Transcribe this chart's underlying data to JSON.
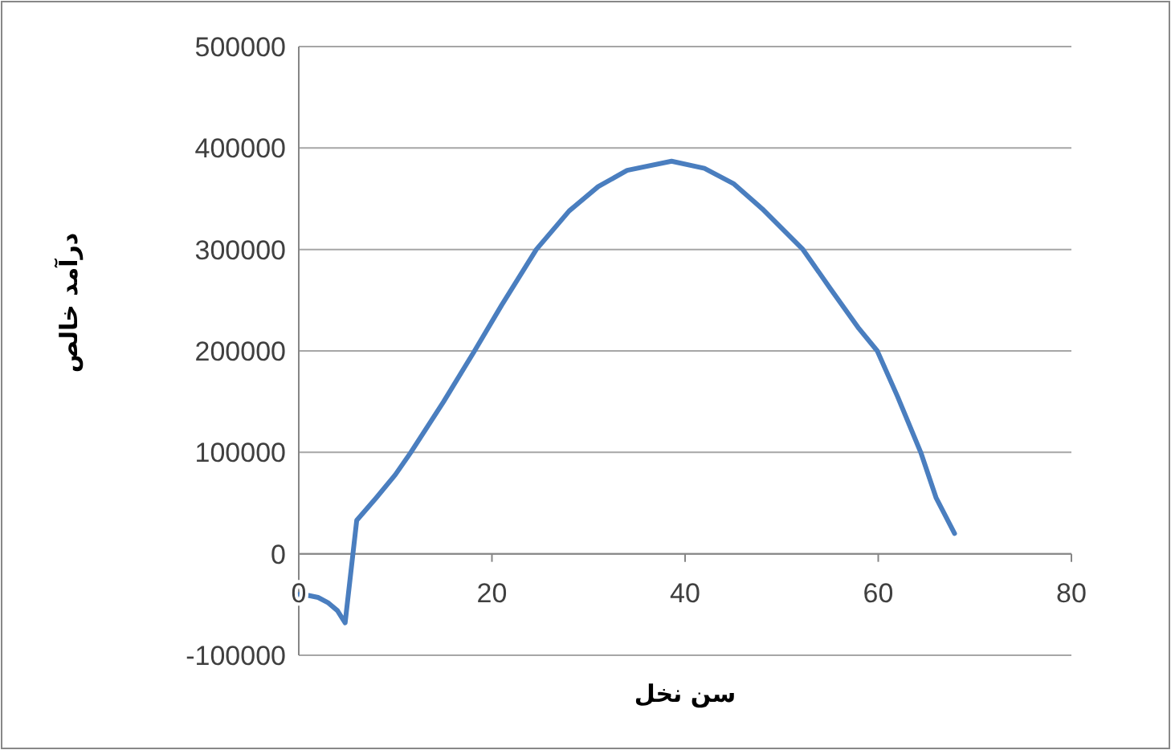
{
  "chart_data": {
    "type": "line",
    "xlabel": "سن نخل",
    "ylabel": "درآمد خالص",
    "x": [
      0,
      1,
      2,
      3,
      4,
      4.8,
      6,
      8,
      10,
      11.6,
      15,
      18.2,
      21,
      24.6,
      28,
      31,
      34,
      38.6,
      42,
      45,
      48,
      52.2,
      55,
      58,
      59.9,
      62,
      64.4,
      66,
      67.9
    ],
    "series": [
      {
        "color": "#4a7ebf",
        "values": [
          -40000,
          -41000,
          -43000,
          -48000,
          -56000,
          -68000,
          33000,
          55000,
          78000,
          100000,
          150000,
          200000,
          245000,
          300000,
          338000,
          362000,
          378000,
          387000,
          380000,
          365000,
          340000,
          300000,
          262000,
          222000,
          200000,
          155000,
          100000,
          55000,
          20000
        ]
      }
    ],
    "xlim": [
      0,
      80
    ],
    "xticks": [
      0,
      20,
      40,
      60,
      80
    ],
    "ylim": [
      -100000,
      500000
    ],
    "yticks": [
      -100000,
      0,
      100000,
      200000,
      300000,
      400000,
      500000
    ],
    "grid": "y",
    "marker": "none",
    "line_style": "solid"
  }
}
